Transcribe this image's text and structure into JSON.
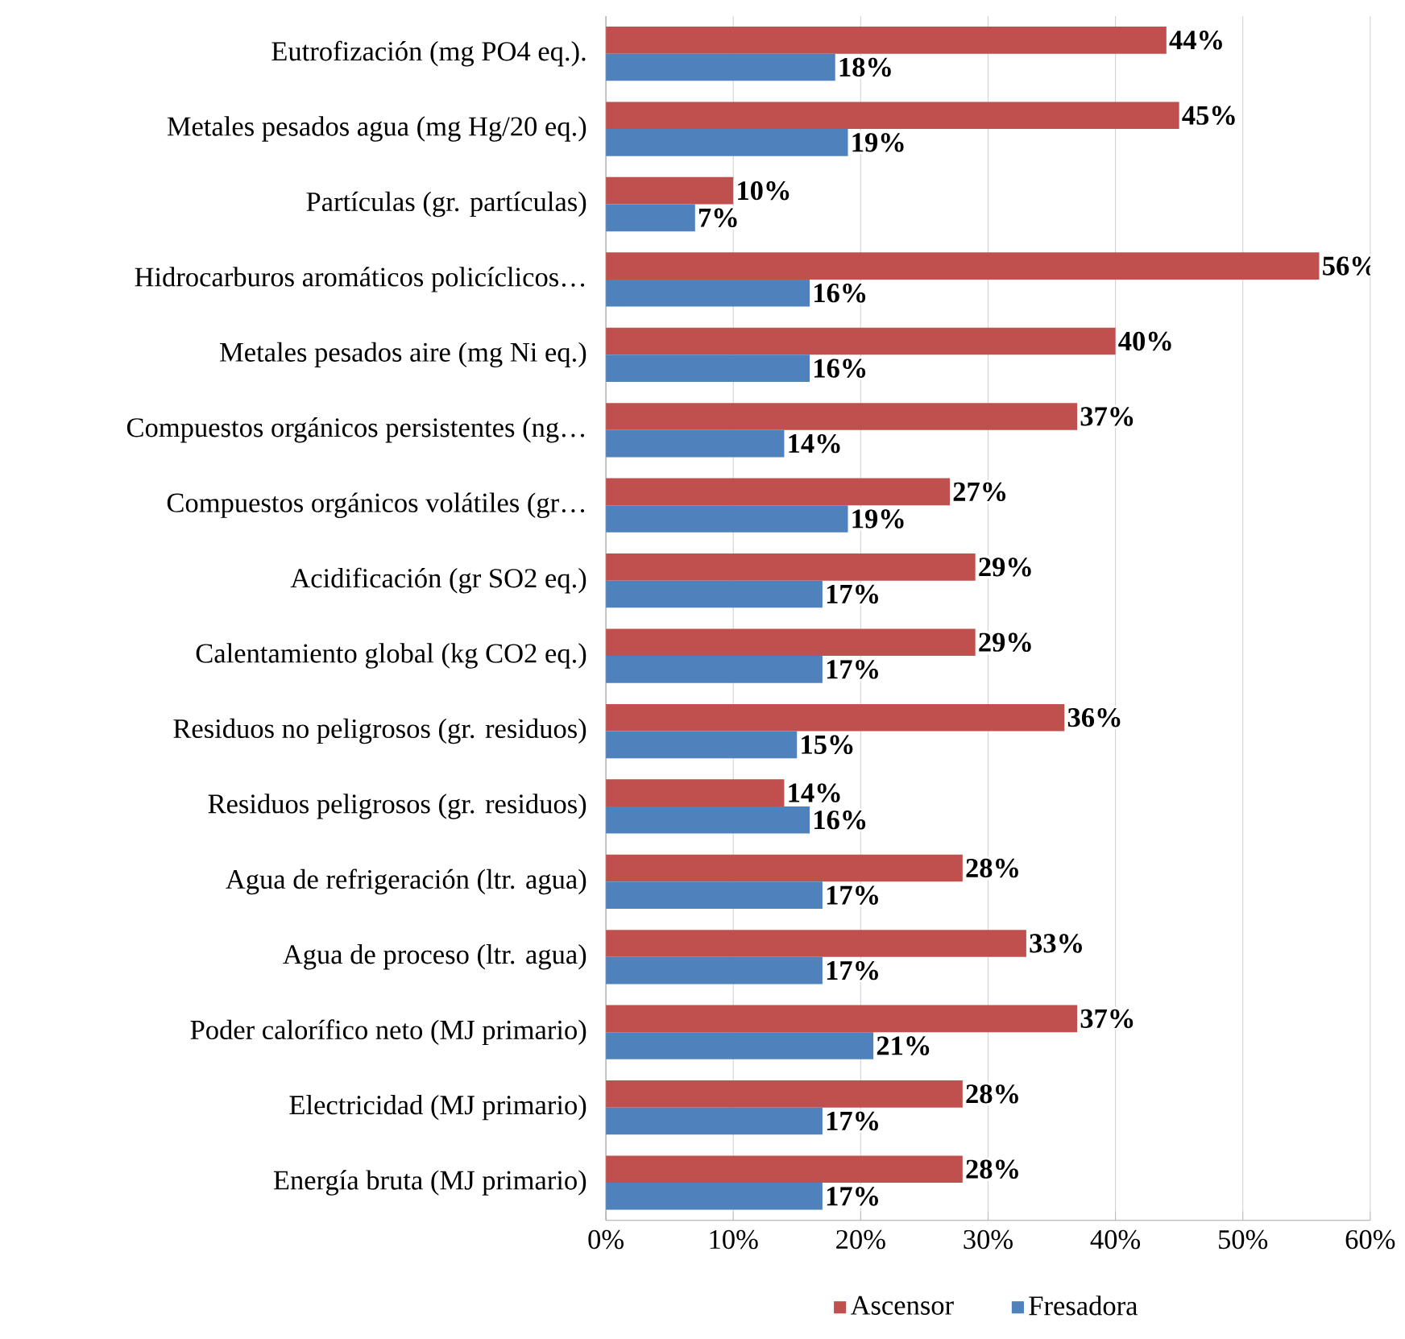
{
  "chart_data": {
    "type": "bar",
    "orientation": "horizontal",
    "categories": [
      "Eutrofización (mg PO4 eq.).",
      "Metales pesados agua (mg Hg/20 eq.)",
      "Partículas (gr. partículas)",
      "Hidrocarburos aromáticos policíclicos…",
      "Metales pesados aire (mg Ni eq.)",
      "Compuestos orgánicos persistentes (ng…",
      "Compuestos orgánicos volátiles (gr…",
      "Acidificación (gr SO2 eq.)",
      "Calentamiento global (kg CO2 eq.)",
      "Residuos no peligrosos (gr. residuos)",
      "Residuos peligrosos (gr. residuos)",
      "Agua de refrigeración (ltr. agua)",
      "Agua de proceso (ltr. agua)",
      "Poder calorífico neto (MJ primario)",
      "Electricidad (MJ primario)",
      "Energía bruta  (MJ primario)"
    ],
    "series": [
      {
        "name": "Ascensor",
        "color": "#c0504d",
        "values": [
          44,
          45,
          10,
          56,
          40,
          37,
          27,
          29,
          29,
          36,
          14,
          28,
          33,
          37,
          28,
          28
        ],
        "value_labels": [
          "44%",
          "45%",
          "10%",
          "56%",
          "40%",
          "37%",
          "27%",
          "29%",
          "29%",
          "36%",
          "14%",
          "28%",
          "33%",
          "37%",
          "28%",
          "28%"
        ]
      },
      {
        "name": "Fresadora",
        "color": "#4f81bd",
        "values": [
          18,
          19,
          7,
          16,
          16,
          14,
          19,
          17,
          17,
          15,
          16,
          17,
          17,
          21,
          17,
          17
        ],
        "value_labels": [
          "18%",
          "19%",
          "7%",
          "16%",
          "16%",
          "14%",
          "19%",
          "17%",
          "17%",
          "15%",
          "16%",
          "17%",
          "17%",
          "21%",
          "17%",
          "17%"
        ]
      }
    ],
    "xlim": [
      0,
      60
    ],
    "xticks": [
      {
        "value": 0,
        "label": "0%"
      },
      {
        "value": 10,
        "label": "10%"
      },
      {
        "value": 20,
        "label": "20%"
      },
      {
        "value": 30,
        "label": "30%"
      },
      {
        "value": 40,
        "label": "40%"
      },
      {
        "value": 50,
        "label": "50%"
      },
      {
        "value": 60,
        "label": "60%"
      }
    ],
    "grid": "x",
    "legend": "bottom"
  }
}
